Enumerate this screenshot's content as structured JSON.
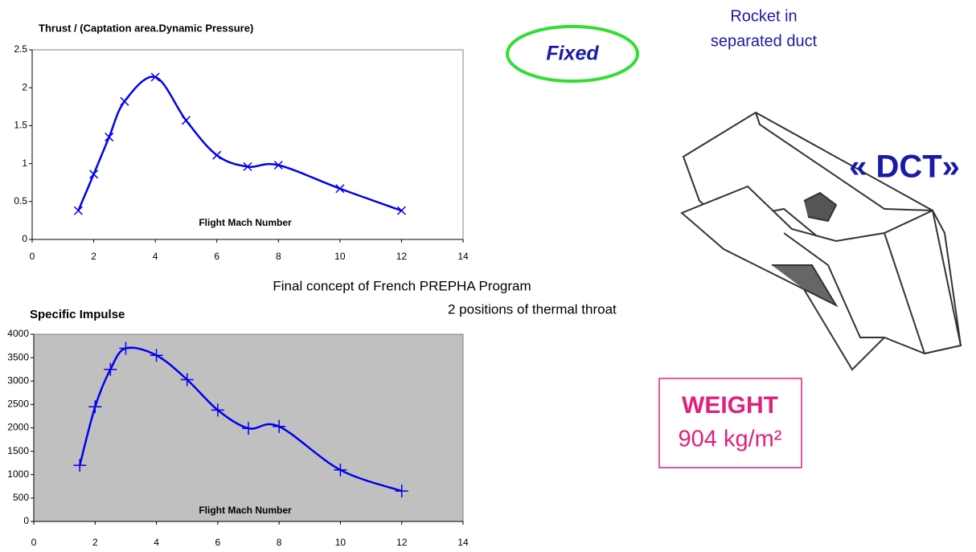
{
  "chart_data": [
    {
      "type": "line",
      "title": "Thrust / (Captation area.Dynamic Pressure)",
      "x_label": "Flight Mach Number",
      "x": [
        1.5,
        2,
        2.5,
        3,
        4,
        5,
        6,
        7,
        8,
        10,
        12
      ],
      "series": [
        {
          "name": "Thrust",
          "color": "#0000ee",
          "marker": "x",
          "values": [
            0.38,
            0.86,
            1.35,
            1.82,
            2.14,
            1.57,
            1.11,
            0.96,
            0.98,
            0.67,
            0.38
          ]
        }
      ],
      "xlim": [
        0,
        14
      ],
      "xticks": [
        0,
        2,
        4,
        6,
        8,
        10,
        12,
        14
      ],
      "ylim": [
        0,
        2.5
      ],
      "yticks": [
        0,
        0.5,
        1,
        1.5,
        2,
        2.5
      ],
      "plot_background": "#ffffff"
    },
    {
      "type": "line",
      "title": "Specific Impulse",
      "x_label": "Flight Mach Number",
      "x": [
        1.5,
        2,
        2.5,
        3,
        4,
        5,
        6,
        7,
        8,
        10,
        12
      ],
      "series": [
        {
          "name": "Specific Impulse",
          "color": "#0000ee",
          "marker": "+",
          "values": [
            1200,
            2450,
            3250,
            3700,
            3550,
            3030,
            2380,
            1990,
            2030,
            1100,
            650
          ]
        }
      ],
      "xlim": [
        0,
        14
      ],
      "xticks": [
        0,
        2,
        4,
        6,
        8,
        10,
        12,
        14
      ],
      "ylim": [
        0,
        4000
      ],
      "yticks": [
        0,
        500,
        1000,
        1500,
        2000,
        2500,
        3000,
        3500,
        4000
      ],
      "plot_background": "#c0c0c0"
    }
  ],
  "labels": {
    "fixed": "Fixed",
    "rocket_line1": "Rocket in",
    "rocket_line2": "separated duct",
    "dct": "« DCT»",
    "concept": "Final concept of French PREPHA Program",
    "throat": "2 positions of thermal throat",
    "weight_title": "WEIGHT",
    "weight_value": "904 kg/m²"
  }
}
